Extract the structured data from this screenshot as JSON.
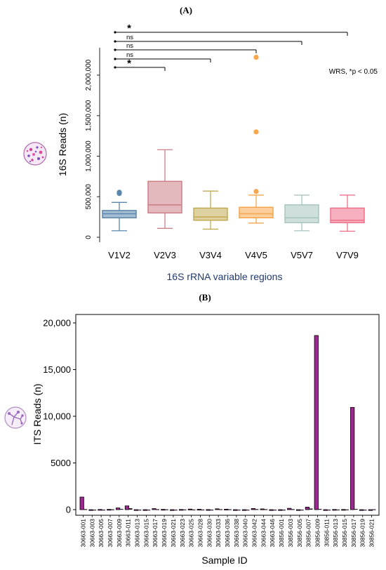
{
  "chart_data": [
    {
      "type": "box",
      "panel_label": "(A)",
      "ylabel": "16S Reads (n)",
      "xlabel": "16S rRNA variable regions",
      "ylim": [
        0,
        2400000
      ],
      "yticks": [
        0,
        500000,
        1000000,
        1500000,
        2000000
      ],
      "ytick_labels": [
        "0",
        "500,000",
        "1,000,000",
        "1,500,000",
        "2,000,000"
      ],
      "note": "WRS, *p < 0.05",
      "icon": "stained-bacteria-cells-icon",
      "categories": [
        "V1V2",
        "V2V3",
        "V3V4",
        "V4V5",
        "V5V7",
        "V7V9"
      ],
      "boxes": [
        {
          "name": "V1V2",
          "color": "#5b86ad",
          "min": 80000,
          "q1": 240000,
          "median": 290000,
          "q3": 330000,
          "max": 430000,
          "outliers": [
            540000,
            555000
          ]
        },
        {
          "name": "V2V3",
          "color": "#cd7f88",
          "min": 110000,
          "q1": 300000,
          "median": 400000,
          "q3": 690000,
          "max": 1080000,
          "outliers": []
        },
        {
          "name": "V3V4",
          "color": "#c2ab54",
          "min": 100000,
          "q1": 210000,
          "median": 250000,
          "q3": 360000,
          "max": 570000,
          "outliers": []
        },
        {
          "name": "V4V5",
          "color": "#f6a64c",
          "min": 175000,
          "q1": 240000,
          "median": 290000,
          "q3": 370000,
          "max": 520000,
          "outliers": [
            565000,
            1300000,
            2220000
          ]
        },
        {
          "name": "V5V7",
          "color": "#a7c5bf",
          "min": 80000,
          "q1": 180000,
          "median": 240000,
          "q3": 400000,
          "max": 520000,
          "outliers": []
        },
        {
          "name": "V7V9",
          "color": "#f0708a",
          "min": 75000,
          "q1": 180000,
          "median": 210000,
          "q3": 360000,
          "max": 520000,
          "outliers": []
        }
      ],
      "significance": [
        {
          "from": "V1V2",
          "to": "V2V3",
          "label": "*"
        },
        {
          "from": "V1V2",
          "to": "V3V4",
          "label": "ns"
        },
        {
          "from": "V1V2",
          "to": "V4V5",
          "label": "ns"
        },
        {
          "from": "V1V2",
          "to": "V5V7",
          "label": "ns"
        },
        {
          "from": "V1V2",
          "to": "V7V9",
          "label": "*"
        }
      ]
    },
    {
      "type": "bar",
      "panel_label": "(B)",
      "ylabel": "ITS Reads (n)",
      "xlabel": "Sample ID",
      "ylim": [
        0,
        20000
      ],
      "yticks": [
        0,
        5000,
        10000,
        15000,
        20000
      ],
      "ytick_labels": [
        "0",
        "5000",
        "10,000",
        "15,000",
        "20,000"
      ],
      "icon": "fungal-hyphae-icon",
      "bar_color": "#9b2a8f",
      "categories": [
        "30663-001",
        "30663-003",
        "30663-005",
        "30663-007",
        "30663-009",
        "30663-011",
        "30663-013",
        "30663-015",
        "30663-017",
        "30663-019",
        "30663-021",
        "30663-023",
        "30663-025",
        "30663-028",
        "30663-030",
        "30663-033",
        "30663-036",
        "30663-038",
        "30663-040",
        "30663-042",
        "30663-044",
        "30663-046",
        "30856-001",
        "30856-003",
        "30856-005",
        "30856-007",
        "30856-009",
        "30856-011",
        "30856-013",
        "30856-015",
        "30856-017",
        "30856-019",
        "30856-021"
      ],
      "values": [
        1350,
        0,
        20,
        30,
        180,
        400,
        0,
        0,
        110,
        30,
        0,
        20,
        60,
        40,
        10,
        90,
        50,
        0,
        0,
        120,
        80,
        0,
        0,
        140,
        0,
        270,
        18650,
        0,
        20,
        20,
        10950,
        0,
        0
      ],
      "values2": [
        60,
        0,
        0,
        30,
        80,
        150,
        0,
        0,
        50,
        30,
        0,
        20,
        20,
        10,
        0,
        50,
        40,
        0,
        0,
        60,
        50,
        0,
        0,
        60,
        0,
        120,
        80,
        0,
        10,
        20,
        80,
        0,
        40
      ]
    }
  ]
}
